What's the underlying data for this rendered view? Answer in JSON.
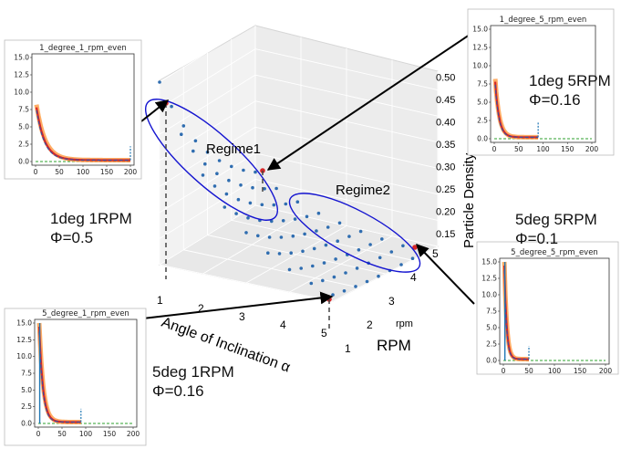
{
  "chart_data": {
    "type": "scatter",
    "main": {
      "xlabel": "Angle of Inclination α",
      "ylabel_short": "rpm",
      "ylabel_big": "RPM",
      "zlabel": "Particle Density",
      "x_ticks": [
        "1",
        "2",
        "3",
        "4",
        "5"
      ],
      "y_ticks": [
        "1",
        "2",
        "3",
        "4",
        "5"
      ],
      "z_ticks": [
        "0.15",
        "0.20",
        "0.25",
        "0.30",
        "0.35",
        "0.40",
        "0.45",
        "0.50"
      ],
      "xlim": [
        1,
        5
      ],
      "ylim": [
        1,
        5
      ],
      "zlim": [
        0.15,
        0.5
      ],
      "regimes": [
        {
          "label": "Regime1",
          "color": "#1515d0"
        },
        {
          "label": "Regime2",
          "color": "#1515d0"
        }
      ],
      "point_color": "#2f6db0",
      "highlight_color": "#d62728",
      "highlighted_points": [
        {
          "angle": 1,
          "rpm": 1,
          "density": 0.5
        },
        {
          "angle": 1,
          "rpm": 5,
          "density": 0.16
        },
        {
          "angle": 5,
          "rpm": 1,
          "density": 0.16
        },
        {
          "angle": 5,
          "rpm": 5,
          "density": 0.1
        }
      ]
    },
    "insets": [
      {
        "id": "1deg1rpm",
        "title": "1_degree_1_rpm_even",
        "y_ticks": [
          "0.0",
          "2.5",
          "5.0",
          "7.5",
          "10.0",
          "12.5",
          "15.0"
        ],
        "x_ticks": [
          "0",
          "50",
          "100",
          "150",
          "200"
        ],
        "ymax": 15,
        "xmax": 200,
        "peak": 8,
        "cutoff": 200
      },
      {
        "id": "1deg5rpm",
        "title": "1_degree_5_rpm_even",
        "y_ticks": [
          "0.0",
          "2.5",
          "5.0",
          "7.5",
          "10.0",
          "12.5",
          "15.0"
        ],
        "x_ticks": [
          "0",
          "50",
          "100",
          "150",
          "200"
        ],
        "ymax": 15,
        "xmax": 200,
        "peak": 8,
        "cutoff": 90
      },
      {
        "id": "5deg1rpm",
        "title": "5_degree_1_rpm_even",
        "y_ticks": [
          "0.0",
          "2.5",
          "5.0",
          "7.5",
          "10.0",
          "12.5",
          "15.0"
        ],
        "x_ticks": [
          "0",
          "50",
          "100",
          "150",
          "200"
        ],
        "ymax": 15,
        "xmax": 200,
        "peak": 15,
        "cutoff": 90
      },
      {
        "id": "5deg5rpm",
        "title": "5_degree_5_rpm_even",
        "y_ticks": [
          "0.0",
          "2.5",
          "5.0",
          "7.5",
          "10.0",
          "12.5",
          "15.0"
        ],
        "x_ticks": [
          "0",
          "50",
          "100",
          "150",
          "200"
        ],
        "ymax": 15,
        "xmax": 200,
        "peak": 15,
        "cutoff": 50
      }
    ]
  },
  "annotations": {
    "a11": {
      "line1": "1deg 1RPM",
      "line2": "Φ=0.5"
    },
    "a15": {
      "line1": "1deg 5RPM",
      "line2": "Φ=0.16"
    },
    "a51": {
      "line1": "5deg 1RPM",
      "line2": "Φ=0.16"
    },
    "a55": {
      "line1": "5deg 5RPM",
      "line2": "Φ=0.1"
    }
  }
}
